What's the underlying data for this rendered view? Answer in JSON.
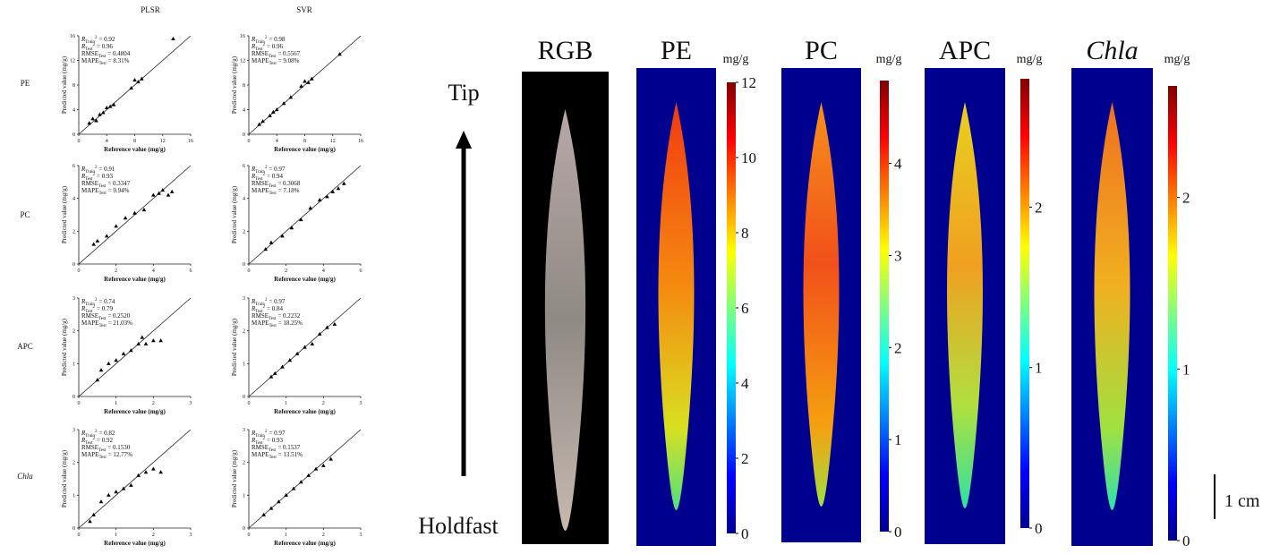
{
  "column_headers": [
    "PLSR",
    "SVR"
  ],
  "row_labels": [
    "PE",
    "PC",
    "APC",
    "Chla"
  ],
  "side_labels": {
    "top": "Tip",
    "bottom": "Holdfast",
    "scale": "1 cm"
  },
  "chart_data": [
    {
      "type": "scatter",
      "x_label": "Reference value (mg/g)",
      "y_label": "Predicted value (mg/g)",
      "xlim": [
        0,
        16
      ],
      "ylim": [
        0,
        16
      ],
      "xticks": [
        0,
        4,
        8,
        12,
        16
      ],
      "yticks": [
        0,
        4,
        8,
        12,
        16
      ],
      "annotations": [
        {
          "symbol": "R",
          "sub": "Train",
          "sup": "2",
          "text": "= 0.92"
        },
        {
          "symbol": "R",
          "sub": "Test",
          "sup": "2",
          "text": "= 0.96"
        },
        {
          "symbol": "RMSE",
          "sub": "Test",
          "text": "= 0.4804"
        },
        {
          "symbol": "MAPE",
          "sub": "Test",
          "text": "= 8.31%"
        }
      ],
      "x": [
        1.5,
        2,
        2.5,
        3,
        3.5,
        4,
        4.5,
        5,
        7.5,
        8,
        8.5,
        9,
        13.5
      ],
      "values": [
        1.8,
        2.5,
        2.2,
        3.2,
        3.5,
        4.3,
        4.5,
        4.8,
        7.5,
        8.8,
        8.5,
        9,
        15.5
      ]
    },
    {
      "type": "scatter",
      "x_label": "Reference value (mg/g)",
      "y_label": "Predicted value (mg/g)",
      "xlim": [
        0,
        16
      ],
      "ylim": [
        0,
        16
      ],
      "xticks": [
        0,
        4,
        8,
        12,
        16
      ],
      "yticks": [
        0,
        4,
        8,
        12,
        16
      ],
      "annotations": [
        {
          "symbol": "R",
          "sub": "Train",
          "sup": "2",
          "text": "= 0.98"
        },
        {
          "symbol": "R",
          "sub": "Test",
          "sup": "2",
          "text": "= 0.96"
        },
        {
          "symbol": "RMSE",
          "sub": "Test",
          "text": "= 0.5567"
        },
        {
          "symbol": "MAPE",
          "sub": "Test",
          "text": "= 9.08%"
        }
      ],
      "x": [
        1.5,
        2,
        3,
        3.5,
        4,
        5,
        6,
        7.5,
        8,
        8.5,
        9,
        13
      ],
      "values": [
        1.6,
        2.1,
        3,
        3.6,
        4,
        5,
        6,
        7.8,
        8.6,
        8.4,
        9,
        13
      ]
    },
    {
      "type": "scatter",
      "x_label": "Reference value (mg/g)",
      "y_label": "Predicted value (mg/g)",
      "xlim": [
        0,
        6
      ],
      "ylim": [
        0,
        6
      ],
      "xticks": [
        0,
        2,
        4,
        6
      ],
      "yticks": [
        0,
        2,
        4,
        6
      ],
      "annotations": [
        {
          "symbol": "R",
          "sub": "Train",
          "sup": "2",
          "text": "= 0.91"
        },
        {
          "symbol": "R",
          "sub": "Test",
          "sup": "2",
          "text": "= 0.93"
        },
        {
          "symbol": "RMSE",
          "sub": "Test",
          "text": "= 0.3347"
        },
        {
          "symbol": "MAPE",
          "sub": "Test",
          "text": "= 9.94%"
        }
      ],
      "x": [
        0.8,
        1,
        1.5,
        2,
        2.5,
        3,
        3.5,
        4,
        4.3,
        4.5,
        4.8,
        5
      ],
      "values": [
        1.2,
        1.4,
        1.7,
        2.3,
        2.8,
        3.1,
        3.3,
        4.2,
        4.3,
        4.5,
        4.2,
        4.4
      ]
    },
    {
      "type": "scatter",
      "x_label": "Reference value (mg/g)",
      "y_label": "Predicted value (mg/g)",
      "xlim": [
        0,
        6
      ],
      "ylim": [
        0,
        6
      ],
      "xticks": [
        0,
        2,
        4,
        6
      ],
      "yticks": [
        0,
        2,
        4,
        6
      ],
      "annotations": [
        {
          "symbol": "R",
          "sub": "Train",
          "sup": "2",
          "text": "= 0.97"
        },
        {
          "symbol": "R",
          "sub": "Test",
          "sup": "2",
          "text": "= 0.94"
        },
        {
          "symbol": "RMSE",
          "sub": "Test",
          "text": "= 0.3068"
        },
        {
          "symbol": "MAPE",
          "sub": "Test",
          "text": "= 7.18%"
        }
      ],
      "x": [
        0.9,
        1.2,
        1.8,
        2.3,
        2.8,
        3.3,
        3.8,
        4.2,
        4.5,
        4.8,
        5.1
      ],
      "values": [
        0.9,
        1.3,
        1.7,
        2.2,
        2.7,
        3.4,
        3.9,
        4.1,
        4.4,
        4.6,
        4.9
      ]
    },
    {
      "type": "scatter",
      "x_label": "Reference value (mg/g)",
      "y_label": "Predicted value (mg/g)",
      "xlim": [
        0,
        3
      ],
      "ylim": [
        0,
        3
      ],
      "xticks": [
        0,
        1,
        2,
        3
      ],
      "yticks": [
        0,
        1,
        2,
        3
      ],
      "annotations": [
        {
          "symbol": "R",
          "sub": "Train",
          "sup": "2",
          "text": "= 0.74"
        },
        {
          "symbol": "R",
          "sub": "Test",
          "sup": "2",
          "text": "= 0.79"
        },
        {
          "symbol": "RMSE",
          "sub": "Test",
          "text": "= 0.2520"
        },
        {
          "symbol": "MAPE",
          "sub": "Test",
          "text": "= 21.03%"
        }
      ],
      "x": [
        0.5,
        0.6,
        0.8,
        1,
        1.2,
        1.4,
        1.6,
        1.7,
        1.8,
        2,
        2.2
      ],
      "values": [
        0.5,
        0.8,
        1,
        1.1,
        1.3,
        1.4,
        1.6,
        1.8,
        1.6,
        1.7,
        1.7
      ]
    },
    {
      "type": "scatter",
      "x_label": "Reference value (mg/g)",
      "y_label": "Predicted value (mg/g)",
      "xlim": [
        0,
        3
      ],
      "ylim": [
        0,
        3
      ],
      "xticks": [
        0,
        1,
        2,
        3
      ],
      "yticks": [
        0,
        1,
        2,
        3
      ],
      "annotations": [
        {
          "symbol": "R",
          "sub": "Train",
          "sup": "2",
          "text": "= 0.97"
        },
        {
          "symbol": "R",
          "sub": "Test",
          "sup": "2",
          "text": "= 0.84"
        },
        {
          "symbol": "RMSE",
          "sub": "Test",
          "text": "= 0.2232"
        },
        {
          "symbol": "MAPE",
          "sub": "Test",
          "text": "= 18.25%"
        }
      ],
      "x": [
        0.6,
        0.7,
        0.9,
        1.1,
        1.3,
        1.5,
        1.7,
        1.9,
        2.1,
        2.3
      ],
      "values": [
        0.6,
        0.7,
        0.9,
        1.1,
        1.3,
        1.5,
        1.6,
        1.9,
        2.1,
        2.2
      ]
    },
    {
      "type": "scatter",
      "x_label": "Reference value (mg/g)",
      "y_label": "Predicted value (mg/g)",
      "xlim": [
        0,
        3
      ],
      "ylim": [
        0,
        3
      ],
      "xticks": [
        0,
        1,
        2,
        3
      ],
      "yticks": [
        0,
        1,
        2,
        3
      ],
      "annotations": [
        {
          "symbol": "R",
          "sub": "Train",
          "sup": "2",
          "text": "= 0.82"
        },
        {
          "symbol": "R",
          "sub": "Test",
          "sup": "2",
          "text": "= 0.92"
        },
        {
          "symbol": "RMSE",
          "sub": "Test",
          "text": "= 0.1530"
        },
        {
          "symbol": "MAPE",
          "sub": "Test",
          "text": "= 12.77%"
        }
      ],
      "x": [
        0.3,
        0.4,
        0.6,
        0.8,
        1,
        1.2,
        1.4,
        1.6,
        1.8,
        2,
        2.2
      ],
      "values": [
        0.2,
        0.4,
        0.8,
        1,
        1.1,
        1.2,
        1.3,
        1.6,
        1.7,
        1.8,
        1.7
      ]
    },
    {
      "type": "scatter",
      "x_label": "Reference value (mg/g)",
      "y_label": "Predicted value (mg/g)",
      "xlim": [
        0,
        3
      ],
      "ylim": [
        0,
        3
      ],
      "xticks": [
        0,
        1,
        2,
        3
      ],
      "yticks": [
        0,
        1,
        2,
        3
      ],
      "annotations": [
        {
          "symbol": "R",
          "sub": "Train",
          "sup": "2",
          "text": "= 0.97"
        },
        {
          "symbol": "R",
          "sub": "Test",
          "sup": "2",
          "text": "= 0.93"
        },
        {
          "symbol": "RMSE",
          "sub": "Test",
          "text": "= 0.1537"
        },
        {
          "symbol": "MAPE",
          "sub": "Test",
          "text": "= 13.51%"
        }
      ],
      "x": [
        0.4,
        0.6,
        0.8,
        1,
        1.2,
        1.4,
        1.6,
        1.8,
        2,
        2.2
      ],
      "values": [
        0.4,
        0.6,
        0.8,
        1,
        1.2,
        1.4,
        1.6,
        1.8,
        1.9,
        2.1
      ]
    },
    {
      "type": "image",
      "title": "RGB"
    },
    {
      "type": "heatmap",
      "title": "PE",
      "unit": "mg/g",
      "zlim": [
        0,
        12
      ],
      "zticks": [
        0,
        2,
        4,
        6,
        8,
        10,
        12
      ]
    },
    {
      "type": "heatmap",
      "title": "PC",
      "unit": "mg/g",
      "zlim": [
        0,
        4.9
      ],
      "zticks": [
        0,
        1,
        2,
        3,
        4
      ]
    },
    {
      "type": "heatmap",
      "title": "APC",
      "unit": "mg/g",
      "zlim": [
        0,
        2.8
      ],
      "zticks": [
        0,
        1,
        2
      ]
    },
    {
      "type": "heatmap",
      "title": "Chla",
      "unit": "mg/g",
      "zlim": [
        0,
        2.65
      ],
      "zticks": [
        0,
        1,
        2
      ]
    }
  ]
}
